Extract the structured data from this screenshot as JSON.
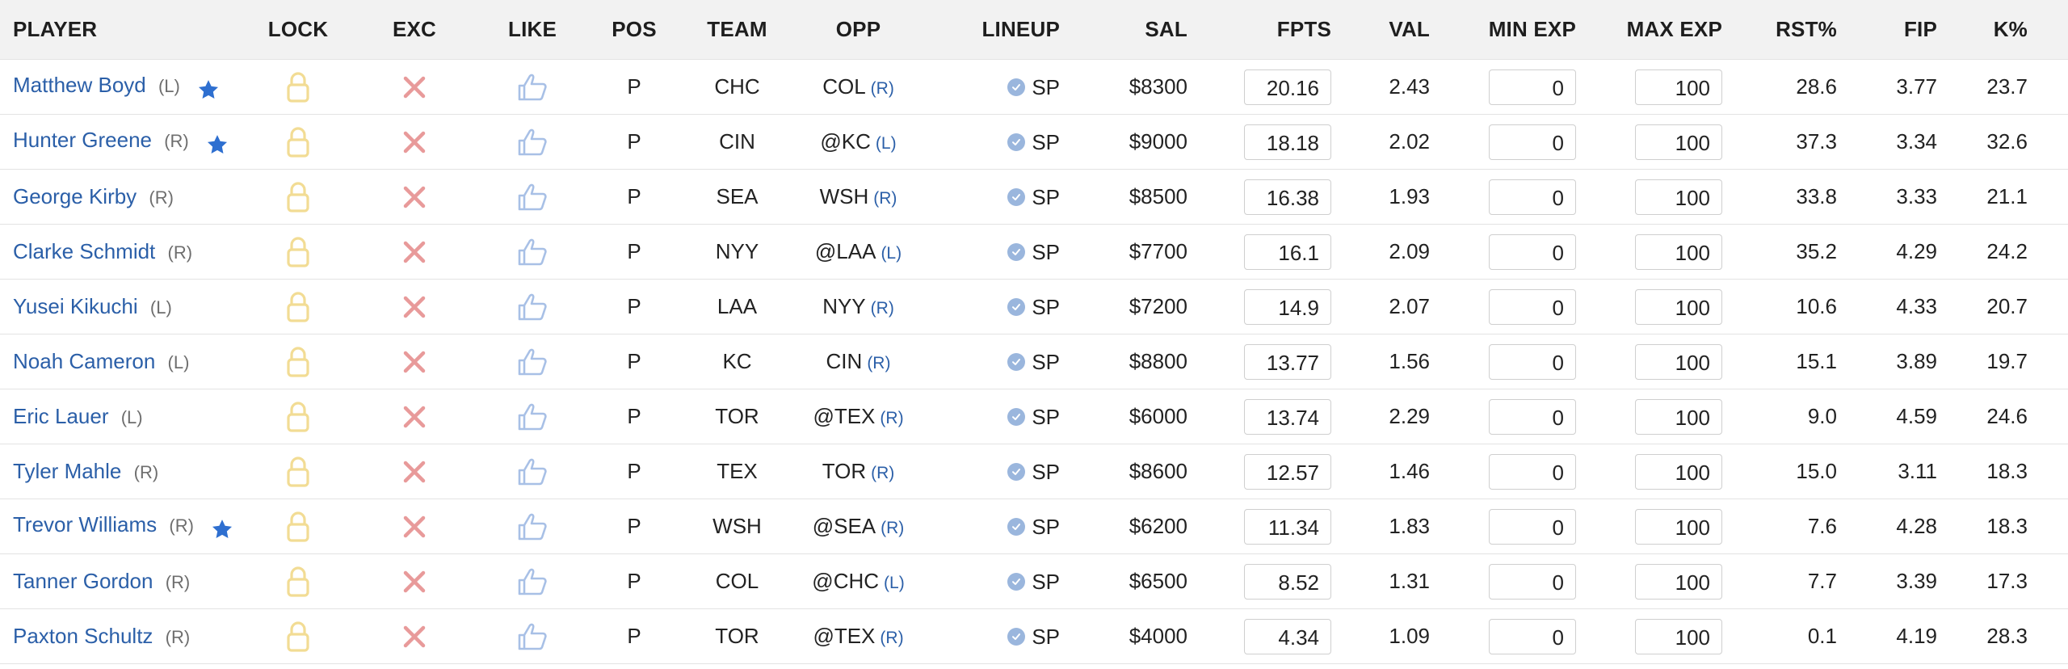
{
  "columns": {
    "player": "PLAYER",
    "lock": "LOCK",
    "exc": "EXC",
    "like": "LIKE",
    "pos": "POS",
    "team": "TEAM",
    "opp": "OPP",
    "lineup": "LINEUP",
    "sal": "SAL",
    "fpts": "FPTS",
    "val": "VAL",
    "min_exp": "MIN EXP",
    "max_exp": "MAX EXP",
    "rst": "RST%",
    "fip": "FIP",
    "k": "K%"
  },
  "colors": {
    "link_blue": "#2b5fa8",
    "star_blue": "#2e6fd0",
    "lock_yellow": "#f2dc94",
    "exclude_red": "#e89a9a",
    "like_blue": "#a8c0e6",
    "check_blue": "#9ab6dd",
    "header_bg": "#f2f2f2"
  },
  "icons": {
    "lock": "lock-icon",
    "exclude": "exclude-x-icon",
    "like": "thumbs-up-icon",
    "star": "star-icon",
    "confirmed": "check-circle-icon"
  },
  "rows": [
    {
      "name": "Matthew Boyd",
      "hand": "(L)",
      "starred": true,
      "pos": "P",
      "team": "CHC",
      "opp": "COL",
      "opp_hand": "(R)",
      "lineup": "SP",
      "sal": "$8300",
      "fpts": "20.16",
      "val": "2.43",
      "min_exp": "0",
      "max_exp": "100",
      "rst": "28.6",
      "fip": "3.77",
      "k": "23.7"
    },
    {
      "name": "Hunter Greene",
      "hand": "(R)",
      "starred": true,
      "pos": "P",
      "team": "CIN",
      "opp": "@KC",
      "opp_hand": "(L)",
      "lineup": "SP",
      "sal": "$9000",
      "fpts": "18.18",
      "val": "2.02",
      "min_exp": "0",
      "max_exp": "100",
      "rst": "37.3",
      "fip": "3.34",
      "k": "32.6"
    },
    {
      "name": "George Kirby",
      "hand": "(R)",
      "starred": false,
      "pos": "P",
      "team": "SEA",
      "opp": "WSH",
      "opp_hand": "(R)",
      "lineup": "SP",
      "sal": "$8500",
      "fpts": "16.38",
      "val": "1.93",
      "min_exp": "0",
      "max_exp": "100",
      "rst": "33.8",
      "fip": "3.33",
      "k": "21.1"
    },
    {
      "name": "Clarke Schmidt",
      "hand": "(R)",
      "starred": false,
      "pos": "P",
      "team": "NYY",
      "opp": "@LAA",
      "opp_hand": "(L)",
      "lineup": "SP",
      "sal": "$7700",
      "fpts": "16.1",
      "val": "2.09",
      "min_exp": "0",
      "max_exp": "100",
      "rst": "35.2",
      "fip": "4.29",
      "k": "24.2"
    },
    {
      "name": "Yusei Kikuchi",
      "hand": "(L)",
      "starred": false,
      "pos": "P",
      "team": "LAA",
      "opp": "NYY",
      "opp_hand": "(R)",
      "lineup": "SP",
      "sal": "$7200",
      "fpts": "14.9",
      "val": "2.07",
      "min_exp": "0",
      "max_exp": "100",
      "rst": "10.6",
      "fip": "4.33",
      "k": "20.7"
    },
    {
      "name": "Noah Cameron",
      "hand": "(L)",
      "starred": false,
      "pos": "P",
      "team": "KC",
      "opp": "CIN",
      "opp_hand": "(R)",
      "lineup": "SP",
      "sal": "$8800",
      "fpts": "13.77",
      "val": "1.56",
      "min_exp": "0",
      "max_exp": "100",
      "rst": "15.1",
      "fip": "3.89",
      "k": "19.7"
    },
    {
      "name": "Eric Lauer",
      "hand": "(L)",
      "starred": false,
      "pos": "P",
      "team": "TOR",
      "opp": "@TEX",
      "opp_hand": "(R)",
      "lineup": "SP",
      "sal": "$6000",
      "fpts": "13.74",
      "val": "2.29",
      "min_exp": "0",
      "max_exp": "100",
      "rst": "9.0",
      "fip": "4.59",
      "k": "24.6"
    },
    {
      "name": "Tyler Mahle",
      "hand": "(R)",
      "starred": false,
      "pos": "P",
      "team": "TEX",
      "opp": "TOR",
      "opp_hand": "(R)",
      "lineup": "SP",
      "sal": "$8600",
      "fpts": "12.57",
      "val": "1.46",
      "min_exp": "0",
      "max_exp": "100",
      "rst": "15.0",
      "fip": "3.11",
      "k": "18.3"
    },
    {
      "name": "Trevor Williams",
      "hand": "(R)",
      "starred": true,
      "pos": "P",
      "team": "WSH",
      "opp": "@SEA",
      "opp_hand": "(R)",
      "lineup": "SP",
      "sal": "$6200",
      "fpts": "11.34",
      "val": "1.83",
      "min_exp": "0",
      "max_exp": "100",
      "rst": "7.6",
      "fip": "4.28",
      "k": "18.3"
    },
    {
      "name": "Tanner Gordon",
      "hand": "(R)",
      "starred": false,
      "pos": "P",
      "team": "COL",
      "opp": "@CHC",
      "opp_hand": "(L)",
      "lineup": "SP",
      "sal": "$6500",
      "fpts": "8.52",
      "val": "1.31",
      "min_exp": "0",
      "max_exp": "100",
      "rst": "7.7",
      "fip": "3.39",
      "k": "17.3"
    },
    {
      "name": "Paxton Schultz",
      "hand": "(R)",
      "starred": false,
      "pos": "P",
      "team": "TOR",
      "opp": "@TEX",
      "opp_hand": "(R)",
      "lineup": "SP",
      "sal": "$4000",
      "fpts": "4.34",
      "val": "1.09",
      "min_exp": "0",
      "max_exp": "100",
      "rst": "0.1",
      "fip": "4.19",
      "k": "28.3"
    }
  ]
}
